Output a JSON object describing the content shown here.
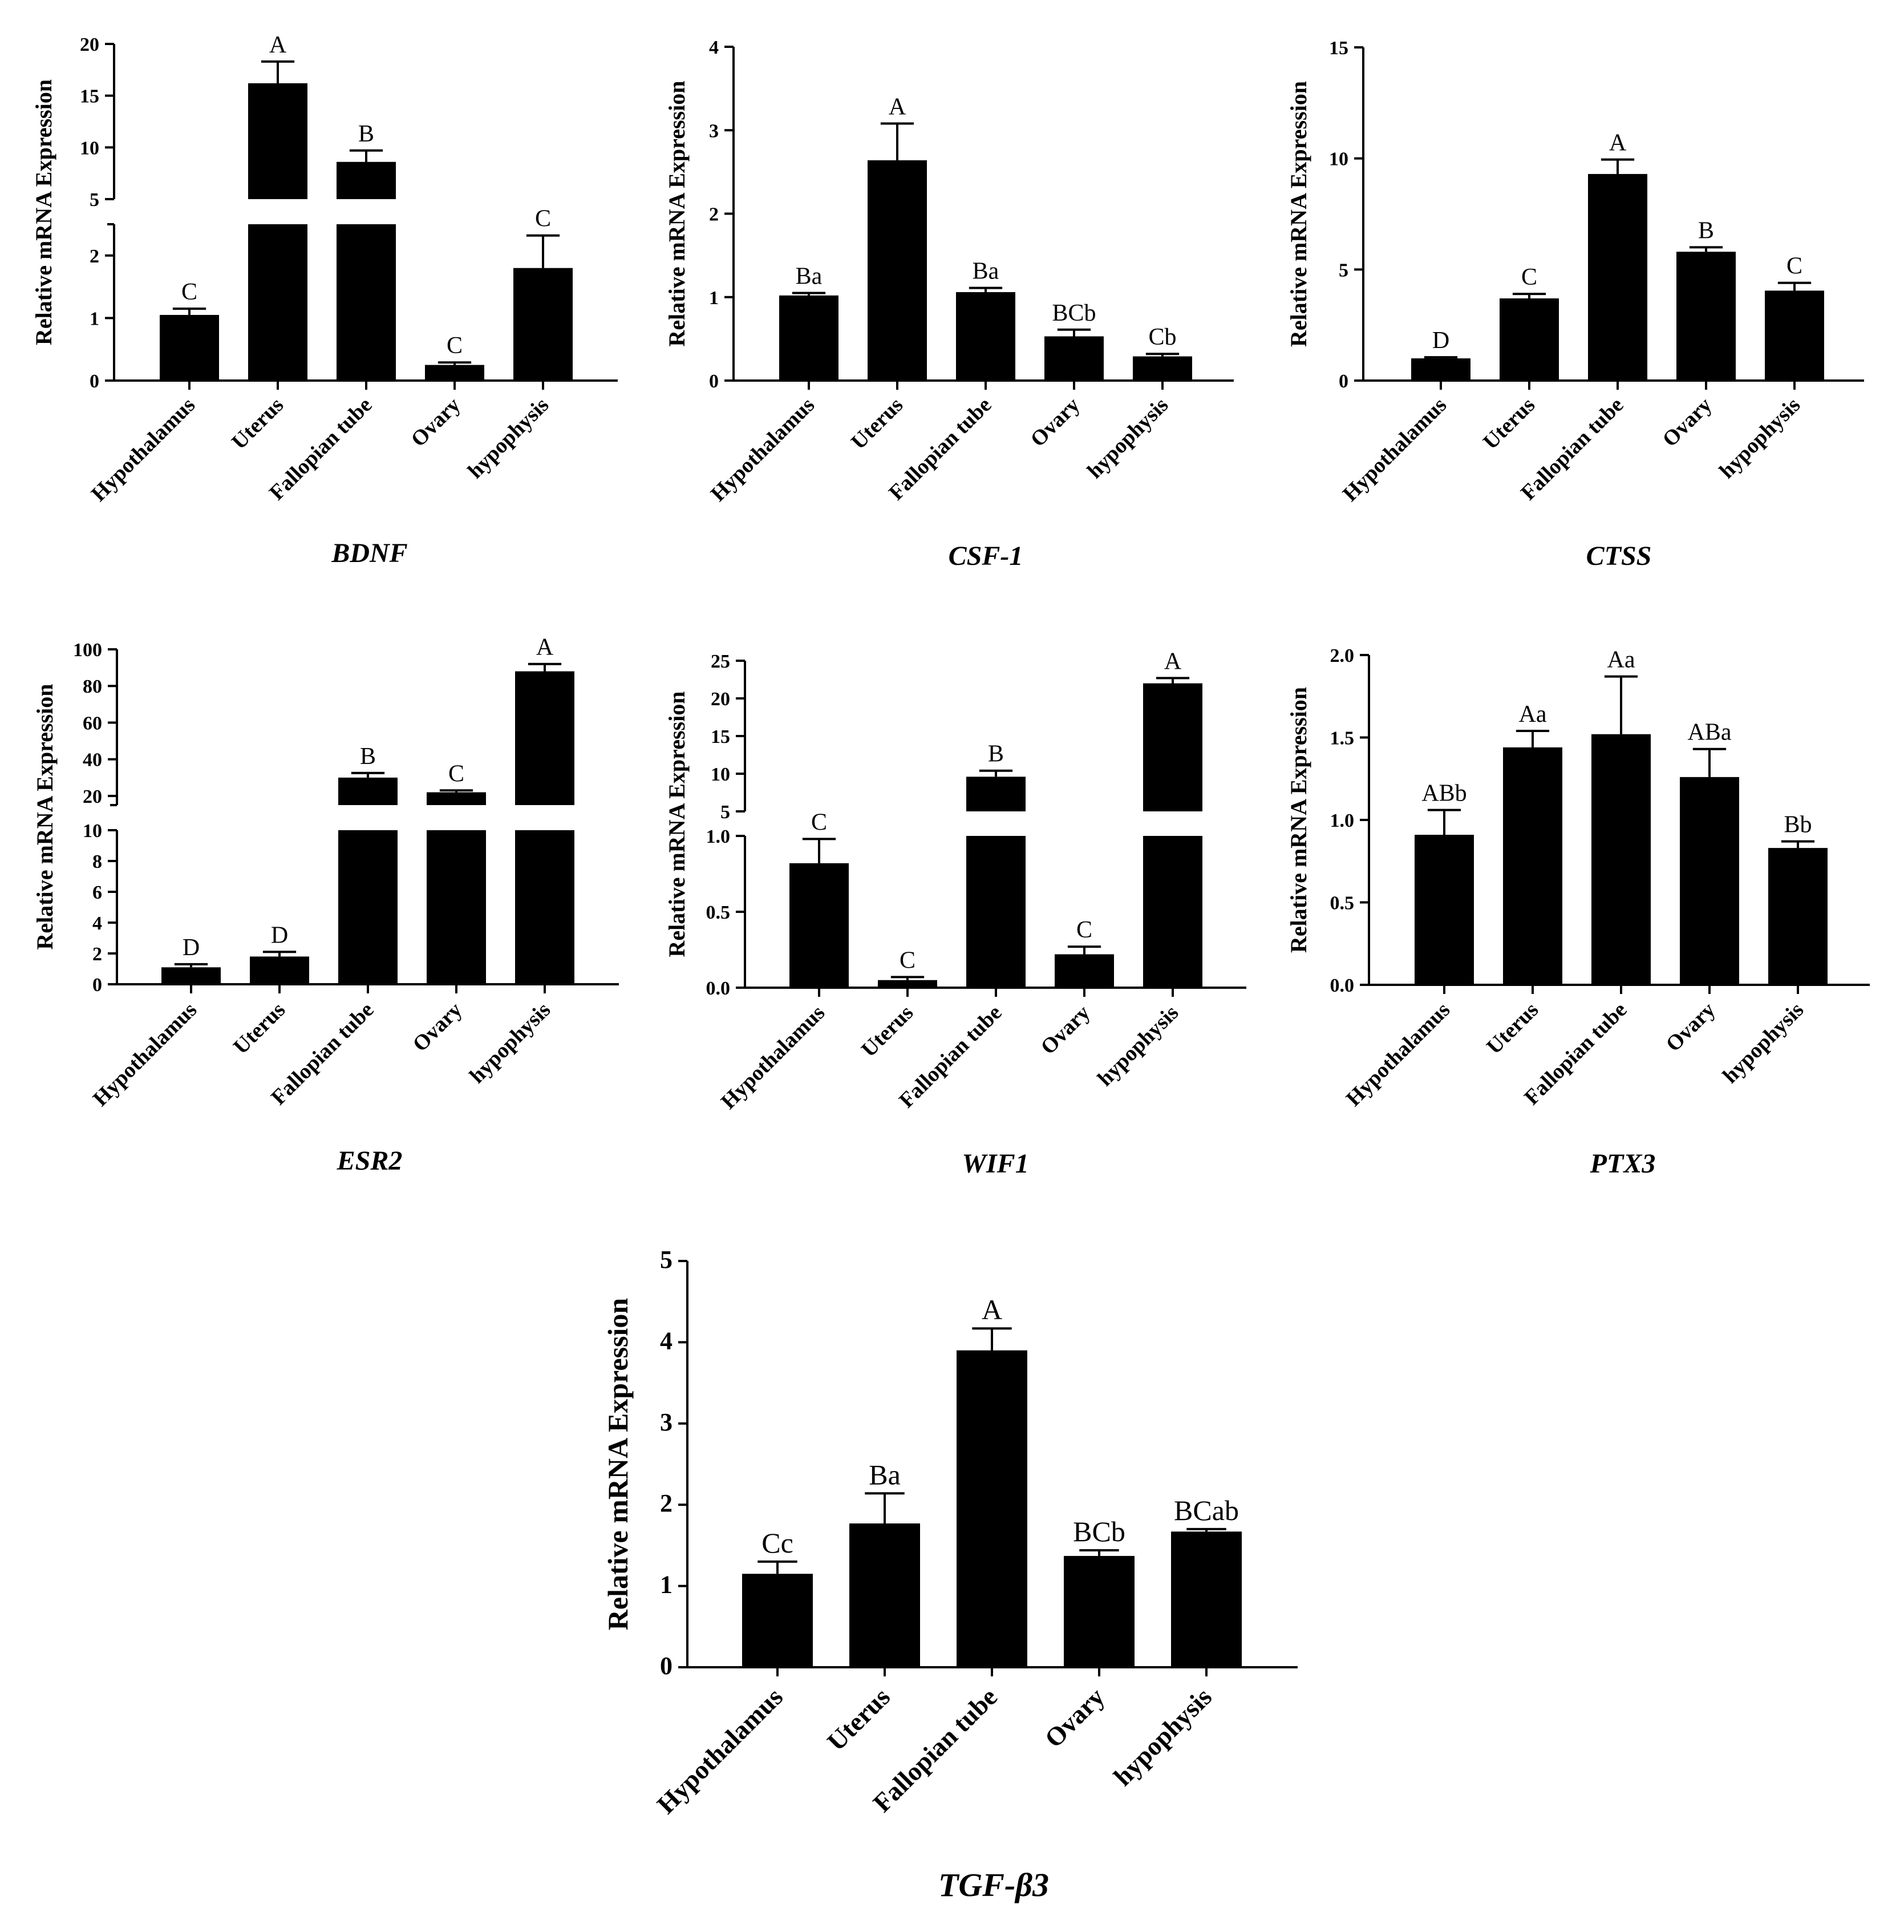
{
  "chart_data": [
    {
      "type": "bar",
      "title": "BDNF",
      "ylabel": "Relative mRNA Expression",
      "categories": [
        "Hypothalamus",
        "Uterus",
        "Fallopian tube",
        "Ovary",
        "hypophysis"
      ],
      "values": [
        1.05,
        16.2,
        8.6,
        0.25,
        1.8
      ],
      "errors": [
        0.1,
        2.1,
        1.1,
        0.04,
        0.52
      ],
      "letters": [
        "C",
        "A",
        "B",
        "C",
        "C"
      ],
      "axis_break": true,
      "lower_range": [
        0,
        2.5
      ],
      "upper_range": [
        5,
        20
      ],
      "lower_ticks": [
        0,
        1,
        2
      ],
      "upper_ticks": [
        5,
        10,
        15,
        20
      ],
      "tick_labels": [
        {
          "value": 0,
          "label": "0"
        },
        {
          "value": 1,
          "label": "1"
        },
        {
          "value": 2,
          "label": "2"
        },
        {
          "value": 5,
          "label": "5"
        },
        {
          "value": 10,
          "label": "10"
        },
        {
          "value": 15,
          "label": "15"
        },
        {
          "value": 20,
          "label": "20"
        }
      ]
    },
    {
      "type": "bar",
      "title": "CSF-1",
      "ylabel": "Relative mRNA Expression",
      "categories": [
        "Hypothalamus",
        "Uterus",
        "Fallopian tube",
        "Ovary",
        "hypophysis"
      ],
      "values": [
        1.02,
        2.64,
        1.06,
        0.53,
        0.29
      ],
      "errors": [
        0.03,
        0.44,
        0.05,
        0.08,
        0.03
      ],
      "letters": [
        "Ba",
        "A",
        "Ba",
        "BCb",
        "Cb"
      ],
      "ylim": [
        0,
        4
      ],
      "ticks": [
        0,
        1,
        2,
        3,
        4
      ],
      "tick_labels": [
        {
          "value": 0,
          "label": "0"
        },
        {
          "value": 1,
          "label": "1"
        },
        {
          "value": 2,
          "label": "2"
        },
        {
          "value": 3,
          "label": "3"
        },
        {
          "value": 4,
          "label": "4"
        }
      ]
    },
    {
      "type": "bar",
      "title": "CTSS",
      "ylabel": "Relative mRNA Expression",
      "categories": [
        "Hypothalamus",
        "Uterus",
        "Fallopian tube",
        "Ovary",
        "hypophysis"
      ],
      "values": [
        1.0,
        3.7,
        9.3,
        5.8,
        4.05
      ],
      "errors": [
        0.05,
        0.2,
        0.65,
        0.2,
        0.35
      ],
      "letters": [
        "D",
        "C",
        "A",
        "B",
        "C"
      ],
      "ylim": [
        0,
        15
      ],
      "ticks": [
        0,
        5,
        10,
        15
      ],
      "tick_labels": [
        {
          "value": 0,
          "label": "0"
        },
        {
          "value": 5,
          "label": "5"
        },
        {
          "value": 10,
          "label": "10"
        },
        {
          "value": 15,
          "label": "15"
        }
      ]
    },
    {
      "type": "bar",
      "title": "ESR2",
      "ylabel": "Relative mRNA Expression",
      "categories": [
        "Hypothalamus",
        "Uterus",
        "Fallopian tube",
        "Ovary",
        "hypophysis"
      ],
      "values": [
        1.1,
        1.8,
        30,
        22,
        88
      ],
      "errors": [
        0.2,
        0.3,
        2.5,
        1.0,
        4.0
      ],
      "letters": [
        "D",
        "D",
        "B",
        "C",
        "A"
      ],
      "axis_break": true,
      "lower_range": [
        0,
        10
      ],
      "upper_range": [
        15,
        100
      ],
      "lower_ticks": [
        0,
        2,
        4,
        6,
        8,
        10
      ],
      "upper_ticks": [
        20,
        40,
        60,
        80,
        100
      ],
      "tick_labels": [
        {
          "value": 0,
          "label": "0"
        },
        {
          "value": 2,
          "label": "2"
        },
        {
          "value": 4,
          "label": "4"
        },
        {
          "value": 6,
          "label": "6"
        },
        {
          "value": 8,
          "label": "8"
        },
        {
          "value": 10,
          "label": "10"
        },
        {
          "value": 20,
          "label": "20"
        },
        {
          "value": 40,
          "label": "40"
        },
        {
          "value": 60,
          "label": "60"
        },
        {
          "value": 80,
          "label": "80"
        },
        {
          "value": 100,
          "label": "100"
        }
      ]
    },
    {
      "type": "bar",
      "title": "WIF1",
      "ylabel": "Relative mRNA Expression",
      "categories": [
        "Hypothalamus",
        "Uterus",
        "Fallopian tube",
        "Ovary",
        "hypophysis"
      ],
      "values": [
        0.82,
        0.05,
        9.6,
        0.22,
        22
      ],
      "errors": [
        0.16,
        0.02,
        0.8,
        0.05,
        0.7
      ],
      "letters": [
        "C",
        "C",
        "B",
        "C",
        "A"
      ],
      "axis_break": true,
      "lower_range": [
        0,
        1.0
      ],
      "upper_range": [
        5,
        25
      ],
      "lower_ticks": [
        0,
        0.5,
        1.0
      ],
      "upper_ticks": [
        5,
        10,
        15,
        20,
        25
      ],
      "tick_labels": [
        {
          "value": 0,
          "label": "0.0"
        },
        {
          "value": 0.5,
          "label": "0.5"
        },
        {
          "value": 1.0,
          "label": "1.0"
        },
        {
          "value": 5,
          "label": "5"
        },
        {
          "value": 10,
          "label": "10"
        },
        {
          "value": 15,
          "label": "15"
        },
        {
          "value": 20,
          "label": "20"
        },
        {
          "value": 25,
          "label": "25"
        }
      ]
    },
    {
      "type": "bar",
      "title": "PTX3",
      "ylabel": "Relative mRNA Expression",
      "categories": [
        "Hypothalamus",
        "Uterus",
        "Fallopian tube",
        "Ovary",
        "hypophysis"
      ],
      "values": [
        0.91,
        1.44,
        1.52,
        1.26,
        0.83
      ],
      "errors": [
        0.15,
        0.1,
        0.35,
        0.17,
        0.04
      ],
      "letters": [
        "ABb",
        "Aa",
        "Aa",
        "ABa",
        "Bb"
      ],
      "ylim": [
        0,
        2.0
      ],
      "ticks": [
        0,
        0.5,
        1.0,
        1.5,
        2.0
      ],
      "tick_labels": [
        {
          "value": 0,
          "label": "0.0"
        },
        {
          "value": 0.5,
          "label": "0.5"
        },
        {
          "value": 1.0,
          "label": "1.0"
        },
        {
          "value": 1.5,
          "label": "1.5"
        },
        {
          "value": 2.0,
          "label": "2.0"
        }
      ]
    },
    {
      "type": "bar",
      "title": "TGF-β3",
      "ylabel": "Relative mRNA Expression",
      "categories": [
        "Hypothalamus",
        "Uterus",
        "Fallopian tube",
        "Ovary",
        "hypophysis"
      ],
      "values": [
        1.15,
        1.77,
        3.9,
        1.37,
        1.67
      ],
      "errors": [
        0.15,
        0.37,
        0.27,
        0.07,
        0.03
      ],
      "letters": [
        "Cc",
        "Ba",
        "A",
        "BCb",
        "BCab"
      ],
      "ylim": [
        0,
        5
      ],
      "ticks": [
        0,
        1,
        2,
        3,
        4,
        5
      ],
      "tick_labels": [
        {
          "value": 0,
          "label": "0"
        },
        {
          "value": 1,
          "label": "1"
        },
        {
          "value": 2,
          "label": "2"
        },
        {
          "value": 3,
          "label": "3"
        },
        {
          "value": 4,
          "label": "4"
        },
        {
          "value": 5,
          "label": "5"
        }
      ]
    }
  ]
}
